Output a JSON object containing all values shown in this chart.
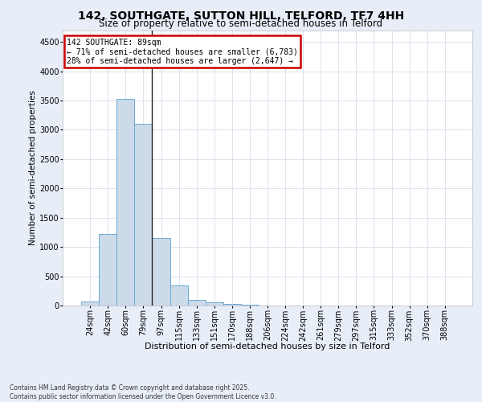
{
  "title1": "142, SOUTHGATE, SUTTON HILL, TELFORD, TF7 4HH",
  "title2": "Size of property relative to semi-detached houses in Telford",
  "xlabel": "Distribution of semi-detached houses by size in Telford",
  "ylabel": "Number of semi-detached properties",
  "bar_color": "#ccdaea",
  "bar_edge_color": "#6aaad4",
  "categories": [
    "24sqm",
    "42sqm",
    "60sqm",
    "79sqm",
    "97sqm",
    "115sqm",
    "133sqm",
    "151sqm",
    "170sqm",
    "188sqm",
    "206sqm",
    "224sqm",
    "242sqm",
    "261sqm",
    "279sqm",
    "297sqm",
    "315sqm",
    "333sqm",
    "352sqm",
    "370sqm",
    "388sqm"
  ],
  "values": [
    75,
    1220,
    3530,
    3100,
    1150,
    340,
    100,
    60,
    30,
    20,
    5,
    2,
    1,
    0,
    0,
    0,
    0,
    0,
    0,
    0,
    0
  ],
  "property_bar_index": 3.5,
  "annotation_title": "142 SOUTHGATE: 89sqm",
  "annotation_line1": "← 71% of semi-detached houses are smaller (6,783)",
  "annotation_line2": "28% of semi-detached houses are larger (2,647) →",
  "vline_color": "#222222",
  "annotation_box_color": "#ffffff",
  "annotation_box_edge": "#cc0000",
  "ylim": [
    0,
    4700
  ],
  "yticks": [
    0,
    500,
    1000,
    1500,
    2000,
    2500,
    3000,
    3500,
    4000,
    4500
  ],
  "footer1": "Contains HM Land Registry data © Crown copyright and database right 2025.",
  "footer2": "Contains public sector information licensed under the Open Government Licence v3.0.",
  "bg_color": "#e8eef8",
  "plot_bg_color": "#ffffff",
  "title1_fontsize": 10,
  "title2_fontsize": 8.5,
  "xlabel_fontsize": 8,
  "ylabel_fontsize": 7.5,
  "tick_fontsize": 7,
  "annotation_fontsize": 7,
  "footer_fontsize": 5.5,
  "grid_color": "#d0d8e8"
}
